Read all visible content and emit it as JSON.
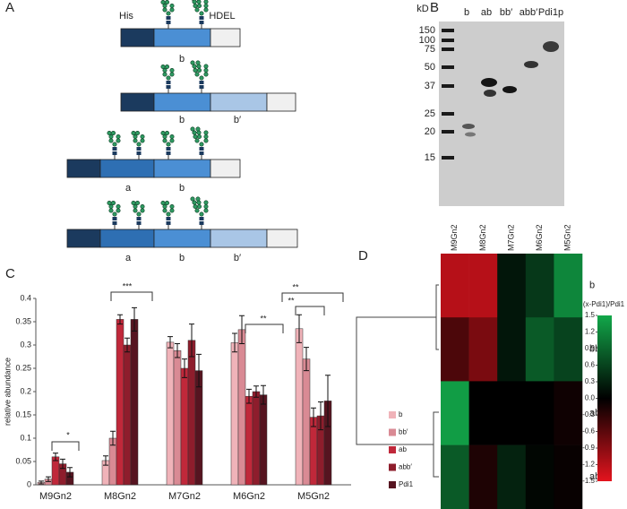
{
  "panel_labels": [
    "A",
    "B",
    "C",
    "D"
  ],
  "panel_a": {
    "his": "His",
    "hdel": "HDEL",
    "constructs": [
      {
        "domains": [
          "b"
        ]
      },
      {
        "domains": [
          "b",
          "b′"
        ]
      },
      {
        "domains": [
          "a",
          "b"
        ]
      },
      {
        "domains": [
          "a",
          "b",
          "b′"
        ]
      }
    ]
  },
  "panel_b": {
    "unit": "kD",
    "markers": [
      "150",
      "100",
      "75",
      "50",
      "37",
      "25",
      "20",
      "15"
    ],
    "lanes": [
      "b",
      "ab",
      "bb′",
      "abb′",
      "Pdi1p"
    ]
  },
  "chart_data": [
    {
      "type": "bar",
      "ylabel": "relative abundance",
      "categories": [
        "M9Gn2",
        "M8Gn2",
        "M7Gn2",
        "M6Gn2",
        "M5Gn2"
      ],
      "series": [
        {
          "name": "b",
          "color": "#f0b3b9",
          "values": [
            0.005,
            0.052,
            0.306,
            0.305,
            0.335
          ],
          "errors": [
            0.003,
            0.01,
            0.012,
            0.02,
            0.03
          ]
        },
        {
          "name": "bb′",
          "color": "#d98a94",
          "values": [
            0.012,
            0.1,
            0.288,
            0.333,
            0.27
          ],
          "errors": [
            0.005,
            0.015,
            0.015,
            0.03,
            0.025
          ]
        },
        {
          "name": "ab",
          "color": "#c0283a",
          "values": [
            0.06,
            0.355,
            0.25,
            0.19,
            0.145
          ],
          "errors": [
            0.008,
            0.01,
            0.02,
            0.015,
            0.02
          ]
        },
        {
          "name": "abb′",
          "color": "#8e1d2c",
          "values": [
            0.045,
            0.3,
            0.31,
            0.2,
            0.148
          ],
          "errors": [
            0.01,
            0.015,
            0.035,
            0.012,
            0.03
          ]
        },
        {
          "name": "Pdi1",
          "color": "#561420",
          "values": [
            0.027,
            0.355,
            0.245,
            0.193,
            0.18
          ],
          "errors": [
            0.01,
            0.025,
            0.035,
            0.02,
            0.055
          ]
        }
      ],
      "ylim": [
        0,
        0.4
      ],
      "yticks": [
        0,
        0.05,
        0.1,
        0.15,
        0.2,
        0.25,
        0.3,
        0.35,
        0.4
      ],
      "annotations": [
        "*",
        "***",
        "**",
        "**",
        "**"
      ]
    },
    {
      "type": "heatmap",
      "x": [
        "M9Gn2",
        "M8Gn2",
        "M7Gn2",
        "M6Gn2",
        "M5Gn2"
      ],
      "y": [
        "b",
        "bb′",
        "ab",
        "abb′"
      ],
      "values": [
        [
          -1.2,
          -1.2,
          0.2,
          0.5,
          1.2
        ],
        [
          -0.5,
          -0.8,
          0.2,
          0.8,
          0.6
        ],
        [
          1.4,
          0,
          0,
          0,
          -0.1
        ],
        [
          0.8,
          -0.2,
          0.3,
          0.05,
          -0.05
        ]
      ],
      "colorbar_label": "(x-Pdi1)/Pdi1",
      "clim": [
        -1.5,
        1.5
      ],
      "colormap": [
        "#e4141e",
        "#000000",
        "#12a84a"
      ],
      "cticks": [
        1.5,
        1.2,
        0.9,
        0.6,
        0.3,
        {
          "value": 0,
          "label": "0.0"
        },
        -0.3,
        -0.6,
        -0.9,
        -1.2,
        -1.5
      ]
    }
  ]
}
